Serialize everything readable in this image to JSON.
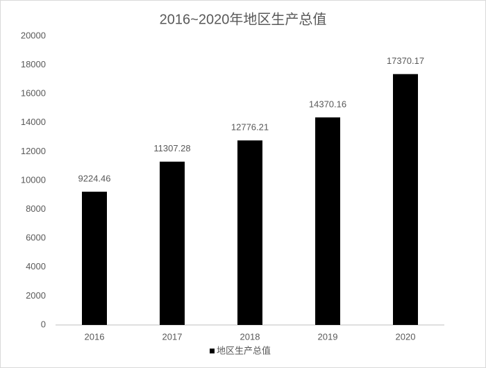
{
  "chart_data": {
    "type": "bar",
    "title": "2016~2020年地区生产总值",
    "categories": [
      "2016",
      "2017",
      "2018",
      "2019",
      "2020"
    ],
    "series": [
      {
        "name": "地区生产总值",
        "color": "#000000",
        "values": [
          9224.46,
          11307.28,
          12776.21,
          14370.16,
          17370.17
        ]
      }
    ],
    "ylim": [
      0,
      20000
    ],
    "yticks": [
      0,
      2000,
      4000,
      6000,
      8000,
      10000,
      12000,
      14000,
      16000,
      18000,
      20000
    ],
    "grid": false,
    "legend": "bottom"
  }
}
